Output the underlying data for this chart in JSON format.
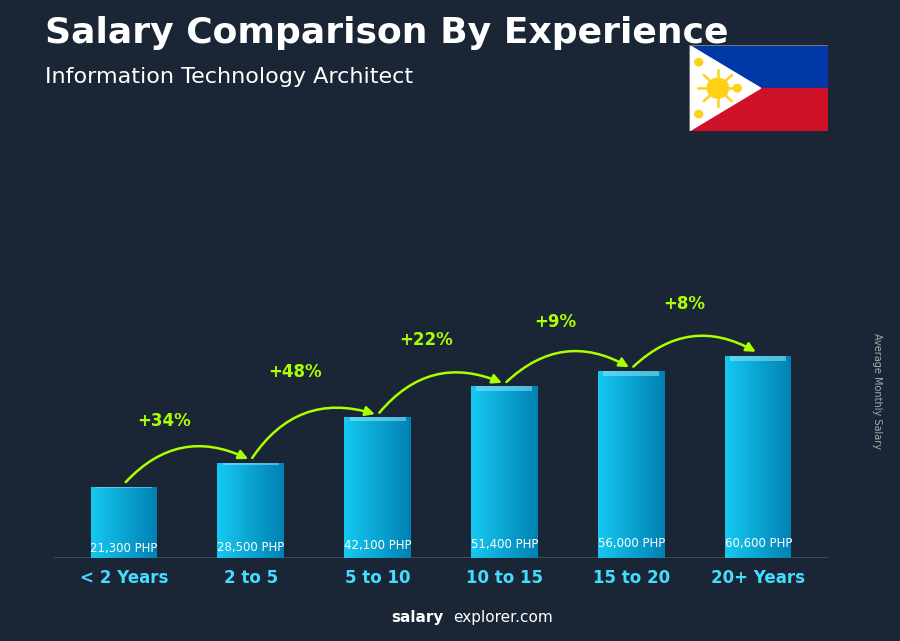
{
  "title": "Salary Comparison By Experience",
  "subtitle": "Information Technology Architect",
  "categories": [
    "< 2 Years",
    "2 to 5",
    "5 to 10",
    "10 to 15",
    "15 to 20",
    "20+ Years"
  ],
  "values": [
    21300,
    28500,
    42100,
    51400,
    56000,
    60600
  ],
  "labels": [
    "21,300 PHP",
    "28,500 PHP",
    "42,100 PHP",
    "51,400 PHP",
    "56,000 PHP",
    "60,600 PHP"
  ],
  "pct_changes": [
    "+34%",
    "+48%",
    "+22%",
    "+9%",
    "+8%"
  ],
  "bg_color": "#1a2535",
  "title_color": "#ffffff",
  "subtitle_color": "#ffffff",
  "pct_color": "#aaff00",
  "xticklabel_color": "#44ddff",
  "label_color": "#ffffff",
  "watermark_salary": "salary",
  "watermark_rest": "explorer.com",
  "ylabel_text": "Average Monthly Salary",
  "title_fontsize": 26,
  "subtitle_fontsize": 16,
  "bar_width": 0.52
}
